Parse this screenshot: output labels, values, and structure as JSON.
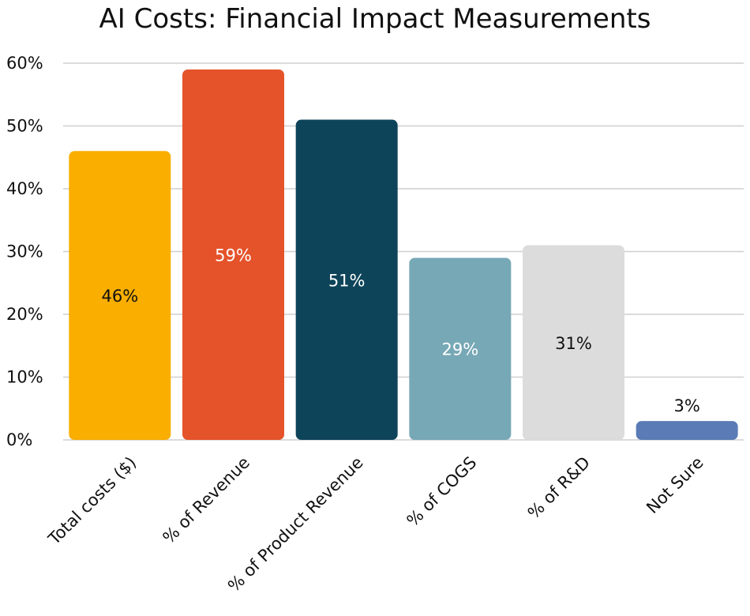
{
  "chart_data": {
    "type": "bar",
    "title": "AI Costs: Financial Impact Measurements",
    "xlabel": "",
    "ylabel": "",
    "ylim": [
      0,
      60
    ],
    "yticks": [
      0,
      10,
      20,
      30,
      40,
      50,
      60
    ],
    "ytick_labels": [
      "0%",
      "10%",
      "20%",
      "30%",
      "40%",
      "50%",
      "60%"
    ],
    "grid": true,
    "categories": [
      "Total costs ($)",
      "% of Revenue",
      "% of Product Revenue",
      "% of COGS",
      "% of R&D",
      "Not Sure"
    ],
    "values": [
      46,
      59,
      51,
      29,
      31,
      3
    ],
    "value_labels": [
      "46%",
      "59%",
      "51%",
      "29%",
      "31%",
      "3%"
    ],
    "bar_colors": [
      "#F9AE00",
      "#E5532A",
      "#0E4459",
      "#77A8B6",
      "#DCDCDC",
      "#5A7BB5"
    ],
    "label_colors": [
      "#111111",
      "#ffffff",
      "#ffffff",
      "#ffffff",
      "#111111",
      "#111111"
    ]
  }
}
